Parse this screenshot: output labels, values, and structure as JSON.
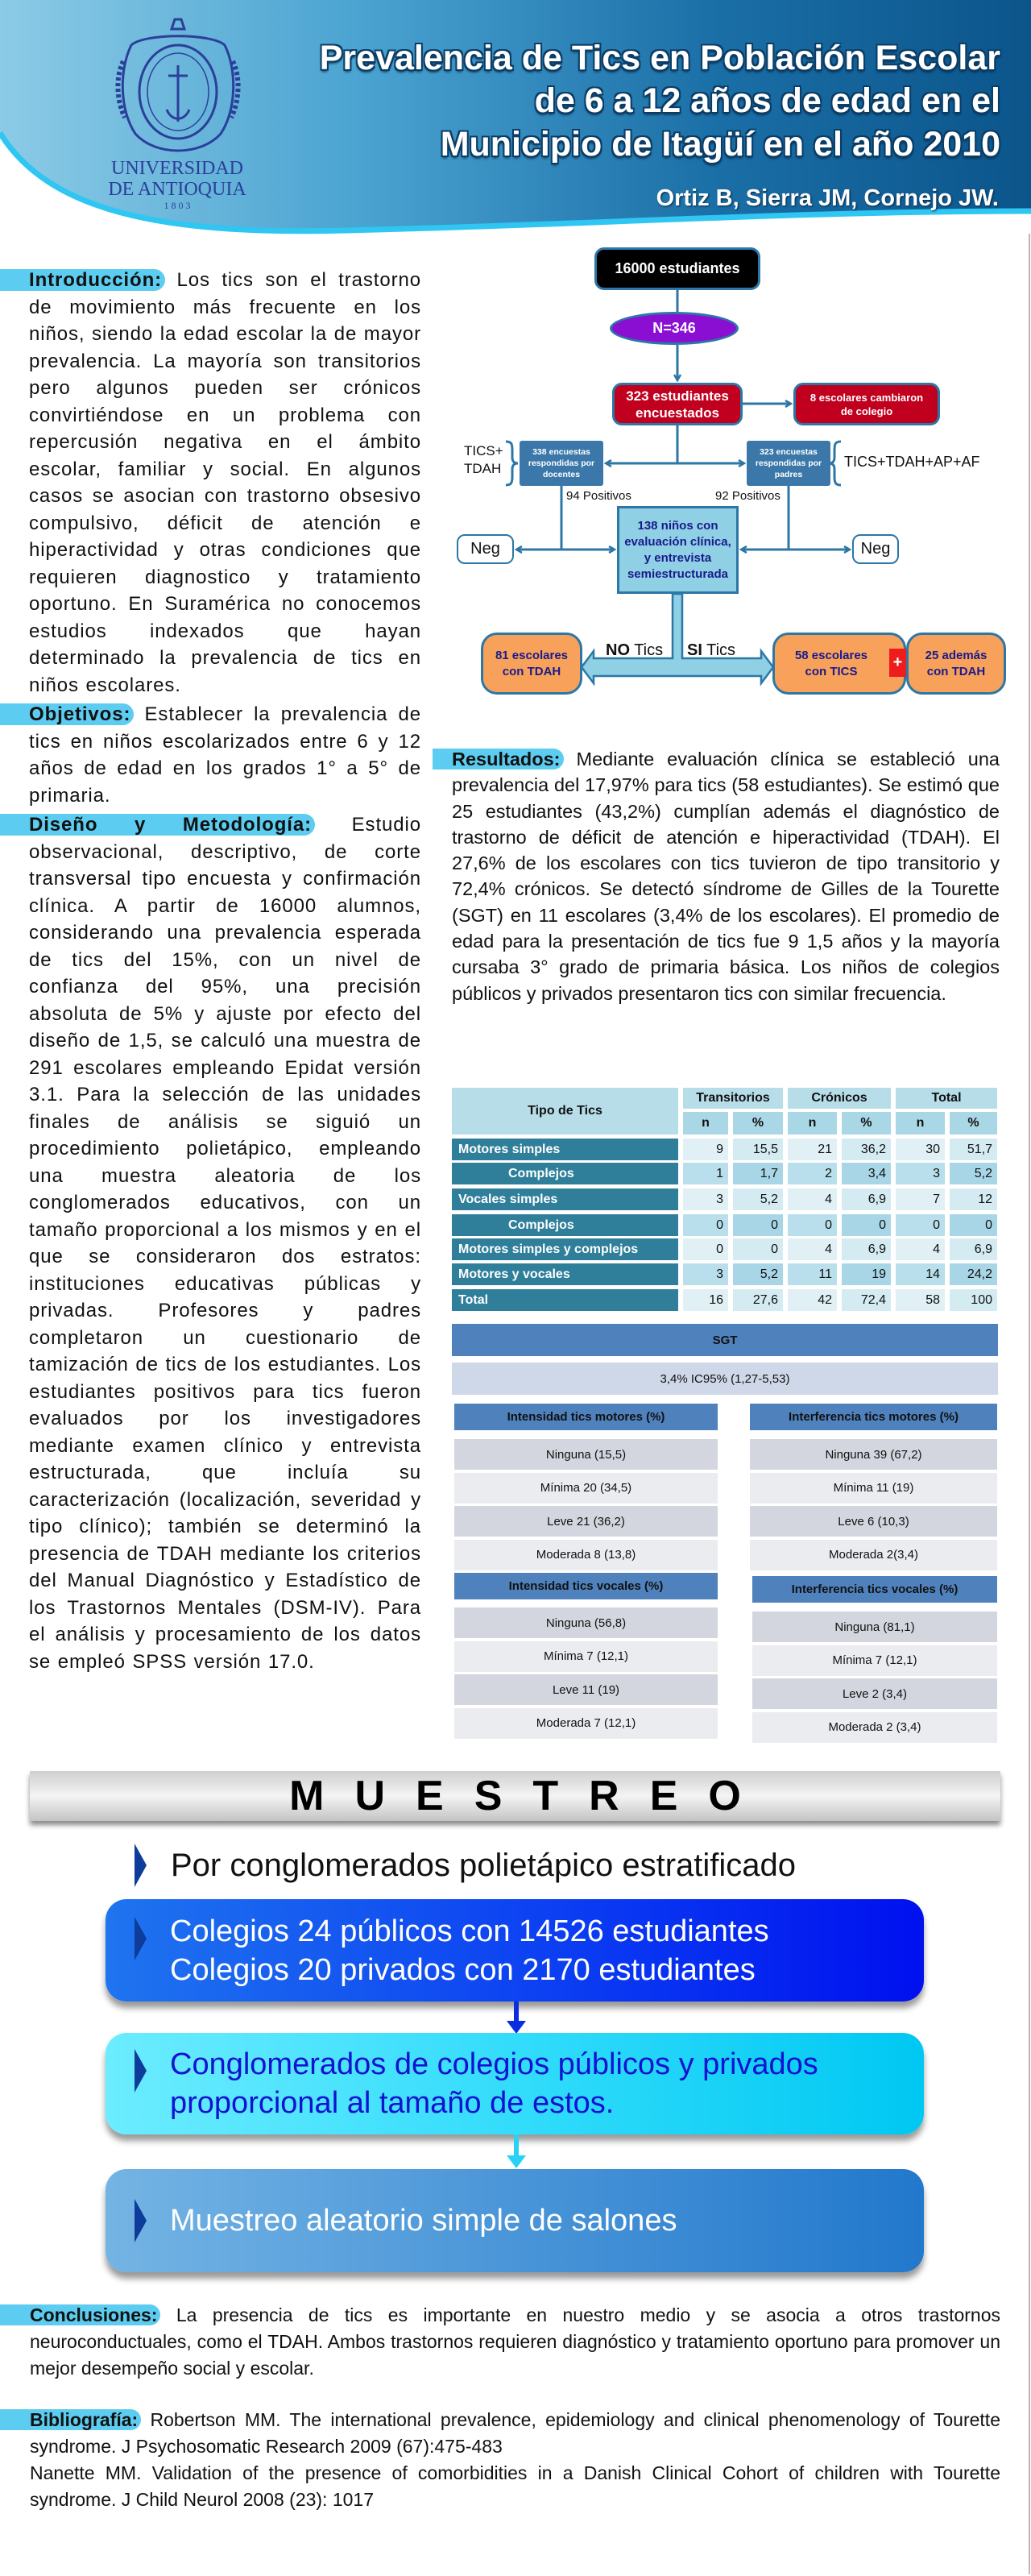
{
  "header": {
    "title_lines": [
      "Prevalencia de Tics en Población Escolar",
      "de 6 a 12 años de edad en el",
      "Municipio de Itagüí en el año 2010"
    ],
    "authors": "Ortiz B, Sierra JM,  Cornejo JW.",
    "logo": {
      "line1": "UNIVERSIDAD",
      "line2": "DE ANTIOQUIA",
      "year": "1 8 0 3"
    }
  },
  "introduccion": {
    "heading": "Introducción:",
    "text": " Los tics son el trastorno de movimiento más frecuente en los niños, siendo la edad escolar la de mayor prevalencia. La mayoría son transitorios pero algunos pueden ser crónicos convirtiéndose en un problema con repercusión negativa en el ámbito escolar, familiar y social. En algunos casos se asocian con trastorno obsesivo compulsivo, déficit de atención e hiperactividad y otras condiciones que requieren diagnostico y tratamiento oportuno. En Suramérica no conocemos estudios indexados que hayan determinado la prevalencia de tics en niños escolares."
  },
  "objetivos": {
    "heading": "Objetivos:",
    "text": " Establecer la prevalencia de tics en niños escolarizados entre 6 y 12 años de edad en los grados 1° a 5° de primaria."
  },
  "metodologia": {
    "heading": "Diseño y Metodología:",
    "text": " Estudio observacional, descriptivo, de corte transversal tipo encuesta y confirmación clínica. A partir de 16000 alumnos, considerando una prevalencia esperada de tics del 15%, con un nivel de confianza del 95%, una precisión absoluta de 5% y ajuste por efecto del diseño de 1,5, se calculó una muestra de 291 escolares empleando Epidat versión 3.1. Para la selección de las unidades finales de análisis se siguió un procedimiento polietápico, empleando una muestra aleatoria de los conglomerados educativos, con un tamaño proporcional a los mismos y en el que se consideraron dos estratos: instituciones educativas públicas y privadas. Profesores y padres completaron un cuestionario de tamización de tics de los estudiantes. Los estudiantes positivos para tics fueron evaluados por los investigadores mediante examen clínico y entrevista estructurada, que incluía su caracterización (localización, severidad y tipo clínico); también se determinó la presencia de TDAH mediante los criterios del Manual Diagnóstico y Estadístico de los Trastornos Mentales (DSM-IV). Para el análisis y procesamiento de los datos se empleó SPSS versión 17.0."
  },
  "flowchart": {
    "population": "16000 estudiantes",
    "sample": "N=346",
    "surveyed": [
      "323 estudiantes",
      "encuestados"
    ],
    "changed_school": [
      "8 escolares cambiaron",
      "de colegio"
    ],
    "teacher_surveys": [
      "338 encuestas",
      "respondidas por",
      "docentes"
    ],
    "parent_surveys": [
      "323 encuestas",
      "respondidas por",
      "padres"
    ],
    "teacher_scope": [
      "TICS+",
      "TDAH"
    ],
    "parent_scope": "TICS+TDAH+AP+AF",
    "teacher_positive": "94 Positivos",
    "parent_positive": "92 Positivos",
    "evaluated": [
      "138 niños con",
      "evaluación clínica,",
      "y entrevista",
      "semiestructurada"
    ],
    "neg_left": "Neg",
    "neg_right": "Neg",
    "no_tics": {
      "bold": "NO",
      "rest": " Tics"
    },
    "si_tics": {
      "bold": "SI",
      "rest": " Tics"
    },
    "tdah_only": [
      "81 escolares",
      "con TDAH"
    ],
    "with_tics": [
      "58 escolares",
      "con TICS"
    ],
    "plus": "+",
    "also_tdah": [
      "25 además",
      "con TDAH"
    ],
    "colors": {
      "black": "#000000",
      "purple": "#8b0fd3",
      "red": "#c0001e",
      "steel": "#3b78a9",
      "light": "#8fd0e4",
      "orange": "#f7a15a",
      "navy": "#1a1a8c"
    }
  },
  "resultados": {
    "heading": "Resultados:",
    "text": " Mediante evaluación clínica se estableció una prevalencia del 17,97% para tics (58 estudiantes). Se estimó que 25 estudiantes (43,2%) cumplían además el diagnóstico de trastorno de déficit de atención e hiperactividad (TDAH). El 27,6% de los escolares con tics tuvieron de tipo transitorio y 72,4% crónicos. Se detectó síndrome de Gilles de la Tourette (SGT) en 11 escolares (3,4% de los escolares). El promedio de edad para la presentación de tics fue 9 1,5 años y la mayoría cursaba 3° grado de primaria básica. Los niños de colegios públicos y privados presentaron tics con similar frecuencia."
  },
  "table": {
    "type_header": "Tipo de Tics",
    "groups": [
      "Transitorios",
      "Crónicos",
      "Total"
    ],
    "subheaders": [
      "n",
      "%",
      "n",
      "%",
      "n",
      "%"
    ],
    "rows": [
      {
        "label": "Motores simples",
        "values": [
          "9",
          "15,5",
          "21",
          "36,2",
          "30",
          "51,7"
        ]
      },
      {
        "label": "Complejos",
        "values": [
          "1",
          "1,7",
          "2",
          "3,4",
          "3",
          "5,2"
        ]
      },
      {
        "label": "Vocales simples",
        "values": [
          "3",
          "5,2",
          "4",
          "6,9",
          "7",
          "12"
        ]
      },
      {
        "label": "Complejos",
        "values": [
          "0",
          "0",
          "0",
          "0",
          "0",
          "0"
        ]
      },
      {
        "label": "Motores simples y complejos",
        "values": [
          "0",
          "0",
          "4",
          "6,9",
          "4",
          "6,9"
        ]
      },
      {
        "label": "Motores y vocales",
        "values": [
          "3",
          "5,2",
          "11",
          "19",
          "14",
          "24,2"
        ]
      },
      {
        "label": "Total",
        "values": [
          "16",
          "27,6",
          "42",
          "72,4",
          "58",
          "100"
        ]
      }
    ]
  },
  "sgt": {
    "header": "SGT",
    "value": "3,4% IC95% (1,27-5,53)"
  },
  "subtables": [
    {
      "header": "Intensidad tics motores (%)",
      "rows": [
        "Ninguna (15,5)",
        "Mínima 20 (34,5)",
        "Leve 21 (36,2)",
        "Moderada 8 (13,8)"
      ]
    },
    {
      "header": "Interferencia tics motores (%)",
      "rows": [
        "Ninguna 39 (67,2)",
        "Mínima 11 (19)",
        "Leve 6 (10,3)",
        "Moderada 2(3,4)"
      ]
    },
    {
      "header": "Intensidad tics vocales (%)",
      "rows": [
        "Ninguna (56,8)",
        "Mínima 7 (12,1)",
        "Leve 11 (19)",
        "Moderada 7 (12,1)"
      ]
    },
    {
      "header": "Interferencia tics vocales (%)",
      "rows": [
        "Ninguna (81,1)",
        "Mínima 7 (12,1)",
        "Leve 2 (3,4)",
        "Moderada 2 (3,4)"
      ]
    }
  ],
  "muestreo": {
    "title": "MUESTREO",
    "subtitle": "Por conglomerados polietápico estratificado",
    "step1": [
      "Colegios 24 públicos con 14526 estudiantes",
      "Colegios 20  privados con 2170 estudiantes"
    ],
    "step2": [
      "Conglomerados de colegios públicos y privados",
      "proporcional al tamaño de estos."
    ],
    "step3": "Muestreo aleatorio simple de salones"
  },
  "conclusiones": {
    "heading": "Conclusiones:",
    "text": " La presencia de tics es importante en nuestro medio y se asocia a otros trastornos neuroconductuales, como el TDAH. Ambos trastornos requieren diagnóstico y tratamiento oportuno para promover un mejor desempeño social y escolar."
  },
  "bibliografia": {
    "heading": "Bibliografía:",
    "refs": [
      "Robertson MM. The international prevalence, epidemiology and clinical phenomenology of Tourette syndrome. J Psychosomatic Research 2009 (67):475-483",
      "Nanette MM. Validation of the presence of comorbidities in a Danish Clinical Cohort of children with Tourette syndrome. J Child Neurol 2008 (23): 1017"
    ]
  },
  "colors": {
    "accent_pill": "#5ccdf0",
    "header_dark": "#0b558b",
    "table_label": "#2f7f9b",
    "sgt_header": "#4f81bd"
  }
}
